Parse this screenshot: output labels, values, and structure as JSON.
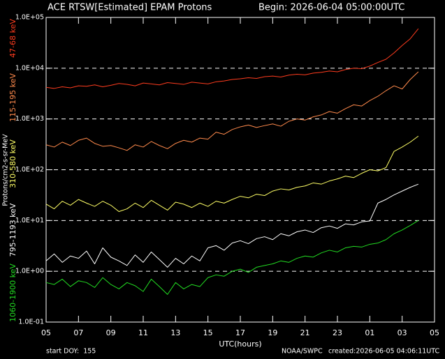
{
  "chart_data": {
    "type": "line",
    "title": "ACE RTSW[Estimated] EPAM Protons",
    "subtitle": "Begin: 2026-06-04 05:00:00UTC",
    "y_label": "Protons/cm2-s-sr-MeV",
    "x_label": "UTC(hours)",
    "footer": {
      "start": "start DOY:  155",
      "source": "NOAA/SWPC",
      "created": "created:2026-06-05 04:06:11UTC"
    },
    "log_scale": true,
    "grid": true,
    "xlim": [
      0,
      24
    ],
    "xticks": [
      {
        "value": 0,
        "label": "05"
      },
      {
        "value": 2,
        "label": "07"
      },
      {
        "value": 4,
        "label": "09"
      },
      {
        "value": 6,
        "label": "11"
      },
      {
        "value": 8,
        "label": "13"
      },
      {
        "value": 10,
        "label": "15"
      },
      {
        "value": 12,
        "label": "17"
      },
      {
        "value": 14,
        "label": "19"
      },
      {
        "value": 16,
        "label": "21"
      },
      {
        "value": 18,
        "label": "23"
      },
      {
        "value": 20,
        "label": "01"
      },
      {
        "value": 22,
        "label": "03"
      },
      {
        "value": 24,
        "label": "05"
      }
    ],
    "ylim": [
      0.1,
      100000
    ],
    "yticks": [
      {
        "value": 0.1,
        "label": "1.0E-01"
      },
      {
        "value": 1,
        "label": "1.0E+00"
      },
      {
        "value": 10,
        "label": "1.0E+01"
      },
      {
        "value": 100,
        "label": "1.0E+02"
      },
      {
        "value": 1000,
        "label": "1.0E+03"
      },
      {
        "value": 10000,
        "label": "1.0E+04"
      },
      {
        "value": 100000,
        "label": "1.0E+05"
      }
    ],
    "x": [
      0,
      0.5,
      1,
      1.5,
      2,
      2.5,
      3,
      3.5,
      4,
      4.5,
      5,
      5.5,
      6,
      6.5,
      7,
      7.5,
      8,
      8.5,
      9,
      9.5,
      10,
      10.5,
      11,
      11.5,
      12,
      12.5,
      13,
      13.5,
      14,
      14.5,
      15,
      15.5,
      16,
      16.5,
      17,
      17.5,
      18,
      18.5,
      19,
      19.5,
      20,
      20.5,
      21,
      21.5,
      22,
      22.5,
      23
    ],
    "series": [
      {
        "name": "47-68 keV",
        "color": "#ff3c1e",
        "values": [
          4200,
          4000,
          4300,
          4100,
          4500,
          4400,
          4700,
          4300,
          4600,
          5000,
          4800,
          4500,
          5100,
          4900,
          4700,
          5200,
          5000,
          4800,
          5300,
          5100,
          4900,
          5400,
          5600,
          6000,
          6200,
          6500,
          6300,
          6800,
          7000,
          6700,
          7300,
          7600,
          7400,
          8000,
          8300,
          8800,
          8500,
          9400,
          10000,
          9800,
          11000,
          13000,
          15000,
          20000,
          28000,
          38000,
          60000
        ]
      },
      {
        "name": "115-195 keV",
        "color": "#ff8a4c",
        "values": [
          310,
          280,
          350,
          300,
          380,
          420,
          330,
          290,
          300,
          270,
          240,
          310,
          280,
          360,
          300,
          260,
          330,
          380,
          350,
          420,
          400,
          550,
          500,
          620,
          700,
          760,
          680,
          740,
          800,
          720,
          900,
          1000,
          950,
          1100,
          1200,
          1400,
          1300,
          1600,
          1900,
          1800,
          2300,
          2800,
          3600,
          4500,
          3900,
          6000,
          8500
        ]
      },
      {
        "name": "310-580 keV",
        "color": "#ffff66",
        "values": [
          21,
          17,
          24,
          20,
          26,
          22,
          19,
          24,
          20,
          15,
          17,
          22,
          18,
          25,
          20,
          16,
          23,
          21,
          18,
          22,
          19,
          24,
          22,
          26,
          30,
          28,
          33,
          31,
          38,
          42,
          40,
          45,
          48,
          55,
          52,
          60,
          66,
          75,
          70,
          85,
          100,
          95,
          110,
          230,
          280,
          350,
          460
        ]
      },
      {
        "name": "795-1193 keV",
        "color": "#ffffff",
        "values": [
          1.6,
          2.2,
          1.5,
          2.0,
          1.8,
          2.5,
          1.4,
          2.9,
          1.9,
          1.6,
          1.3,
          2.1,
          1.5,
          2.4,
          1.7,
          1.2,
          1.8,
          1.4,
          2.0,
          1.6,
          2.9,
          3.2,
          2.6,
          3.6,
          4.0,
          3.5,
          4.4,
          4.8,
          4.2,
          5.5,
          5.0,
          6.0,
          6.5,
          5.8,
          7.2,
          7.8,
          7.0,
          8.6,
          8.2,
          9.4,
          9.8,
          22,
          26,
          32,
          38,
          45,
          52
        ]
      },
      {
        "name": "1060-1900 keV",
        "color": "#22dd22",
        "values": [
          0.6,
          0.55,
          0.7,
          0.5,
          0.65,
          0.6,
          0.48,
          0.75,
          0.55,
          0.45,
          0.6,
          0.52,
          0.4,
          0.7,
          0.5,
          0.35,
          0.6,
          0.45,
          0.55,
          0.5,
          0.75,
          0.85,
          0.8,
          1.0,
          1.1,
          0.95,
          1.2,
          1.3,
          1.4,
          1.6,
          1.5,
          1.8,
          2.0,
          1.9,
          2.3,
          2.6,
          2.4,
          2.9,
          3.1,
          3.0,
          3.4,
          3.6,
          4.2,
          5.5,
          6.5,
          8.0,
          10
        ]
      }
    ]
  }
}
